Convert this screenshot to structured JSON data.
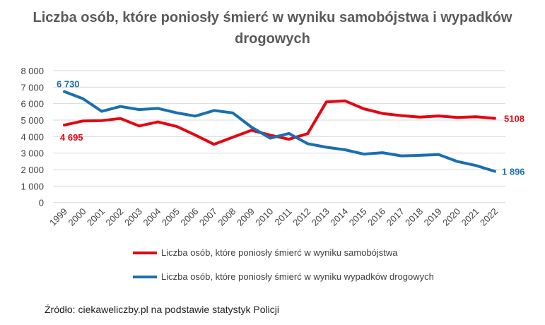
{
  "title": "Liczba osób, które poniosły śmierć w wyniku samobójstwa i wypadków drogowych",
  "source": "Źródło: ciekaweliczby.pl na podstawie statystyk Policji",
  "chart_data": {
    "type": "line",
    "title": "Liczba osób, które poniosły śmierć w wyniku samobójstwa i wypadków drogowych",
    "categories": [
      "1999",
      "2000",
      "2001",
      "2002",
      "2003",
      "2004",
      "2005",
      "2006",
      "2007",
      "2008",
      "2009",
      "2010",
      "2011",
      "2012",
      "2013",
      "2014",
      "2015",
      "2016",
      "2017",
      "2018",
      "2019",
      "2020",
      "2021",
      "2022"
    ],
    "ylim": [
      0,
      8000
    ],
    "yticks": [
      0,
      1000,
      2000,
      3000,
      4000,
      5000,
      6000,
      7000,
      8000
    ],
    "ytick_labels": [
      "0",
      "1 000",
      "2 000",
      "3 000",
      "4 000",
      "5 000",
      "6 000",
      "7 000",
      "8 000"
    ],
    "grid": true,
    "legend": "bottom",
    "series": [
      {
        "name": "Liczba osób, które poniosły śmierć w wyniku samobójstwa",
        "color": "#e30613",
        "values": [
          4695,
          4947,
          4970,
          5100,
          4646,
          4889,
          4621,
          4090,
          3530,
          3964,
          4384,
          4087,
          3839,
          4177,
          6101,
          6165,
          5688,
          5405,
          5276,
          5182,
          5255,
          5165,
          5201,
          5108
        ],
        "labels": {
          "first": "4 695",
          "last": "5108"
        }
      },
      {
        "name": "Liczba osób, które poniosły śmierć w wyniku wypadków drogowych",
        "color": "#1a6faf",
        "values": [
          6730,
          6294,
          5534,
          5827,
          5640,
          5712,
          5444,
          5243,
          5583,
          5437,
          4572,
          3907,
          4189,
          3571,
          3357,
          3202,
          2938,
          3026,
          2831,
          2862,
          2909,
          2491,
          2245,
          1896
        ],
        "labels": {
          "first": "6 730",
          "last": "1 896"
        }
      }
    ]
  }
}
